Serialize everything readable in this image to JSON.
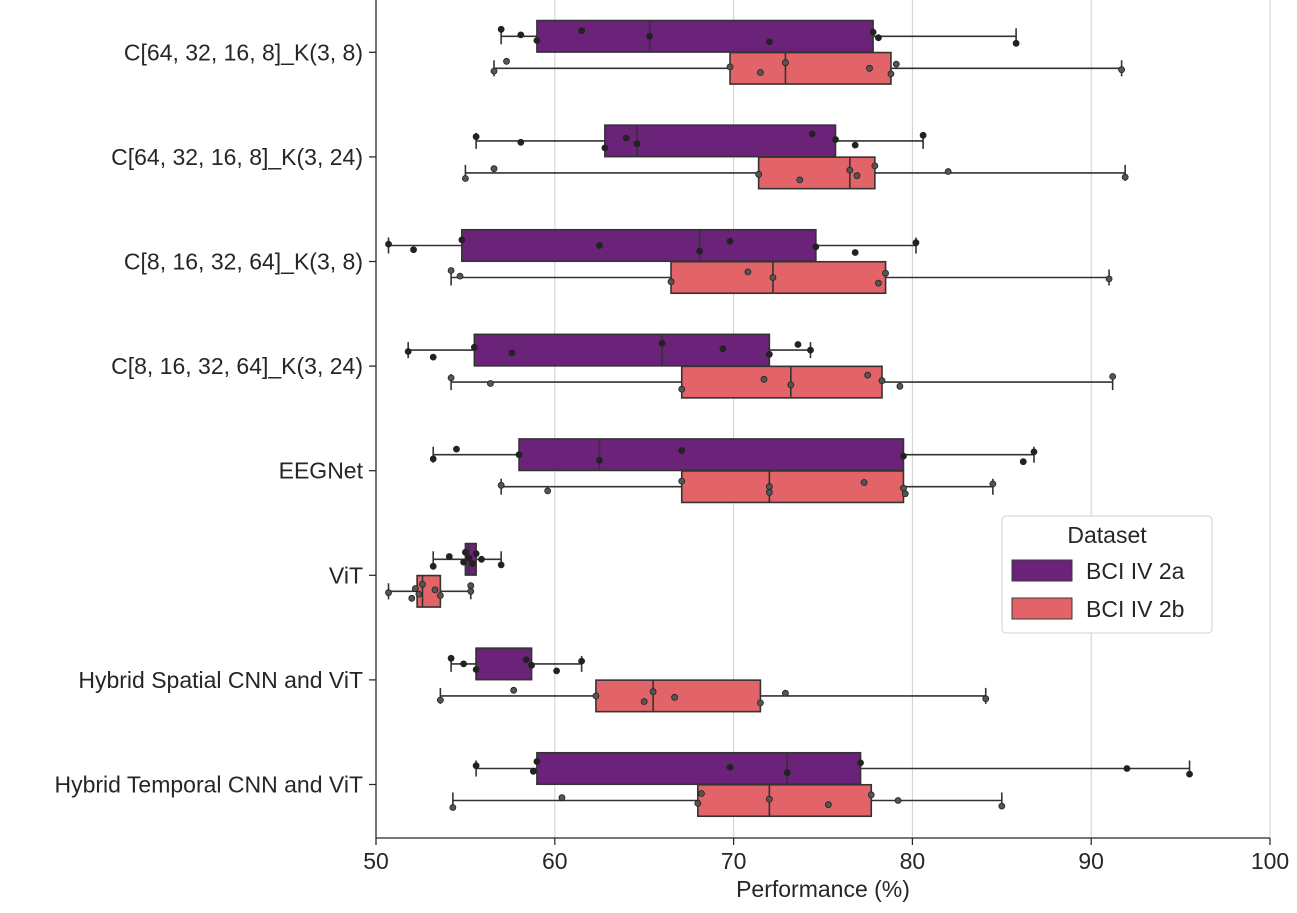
{
  "chart_data": {
    "type": "box",
    "orientation": "horizontal",
    "xlabel": "Performance (%)",
    "ylabel": "",
    "xlim": [
      50,
      100
    ],
    "xticks": [
      50,
      60,
      70,
      80,
      90,
      100
    ],
    "grid": "vertical",
    "legend": {
      "title": "Dataset",
      "placement": "center-right"
    },
    "categories": [
      "C[64, 32, 16, 8]_K(3, 8)",
      "C[64, 32, 16, 8]_K(3, 24)",
      "C[8, 16, 32, 64]_K(3, 8)",
      "C[8, 16, 32, 64]_K(3, 24)",
      "EEGNet",
      "ViT",
      "Hybrid Spatial CNN and ViT",
      "Hybrid Temporal CNN and ViT"
    ],
    "series": [
      {
        "name": "BCI IV 2a",
        "color": "#6a2378",
        "boxes": [
          {
            "whislo": 57.0,
            "q1": 59.0,
            "med": 65.3,
            "q3": 77.8,
            "whishi": 85.8,
            "points": [
              57.0,
              58.1,
              59.0,
              61.5,
              65.3,
              72.0,
              77.8,
              78.1,
              85.8
            ]
          },
          {
            "whislo": 55.6,
            "q1": 62.8,
            "med": 64.6,
            "q3": 75.7,
            "whishi": 80.6,
            "points": [
              55.6,
              58.1,
              62.8,
              64.0,
              64.6,
              74.4,
              75.7,
              76.8,
              80.6
            ]
          },
          {
            "whislo": 50.7,
            "q1": 54.8,
            "med": 68.1,
            "q3": 74.6,
            "whishi": 80.2,
            "points": [
              50.7,
              52.1,
              54.8,
              62.5,
              68.1,
              69.8,
              74.6,
              76.8,
              80.2
            ]
          },
          {
            "whislo": 51.8,
            "q1": 55.5,
            "med": 66.0,
            "q3": 72.0,
            "whishi": 74.3,
            "points": [
              51.8,
              53.2,
              55.5,
              57.6,
              66.0,
              69.4,
              72.0,
              73.6,
              74.3
            ]
          },
          {
            "whislo": 53.2,
            "q1": 58.0,
            "med": 62.5,
            "q3": 79.5,
            "whishi": 86.8,
            "points": [
              53.2,
              54.5,
              58.0,
              62.5,
              67.1,
              79.5,
              86.2,
              86.8
            ]
          },
          {
            "whislo": 53.2,
            "q1": 55.0,
            "med": 55.2,
            "q3": 55.6,
            "whishi": 57.0,
            "points": [
              53.2,
              54.1,
              54.9,
              55.0,
              55.2,
              55.4,
              55.6,
              55.9,
              57.0
            ]
          },
          {
            "whislo": 54.2,
            "q1": 55.6,
            "med": 55.6,
            "q3": 58.7,
            "whishi": 61.5,
            "points": [
              54.2,
              54.9,
              55.6,
              58.4,
              58.7,
              60.1,
              61.5
            ]
          },
          {
            "whislo": 55.6,
            "q1": 59.0,
            "med": 73.0,
            "q3": 77.1,
            "whishi": 95.5,
            "points": [
              55.6,
              58.8,
              59.0,
              69.8,
              73.0,
              77.1,
              92.0,
              95.5
            ]
          }
        ]
      },
      {
        "name": "BCI IV 2b",
        "color": "#e26368",
        "boxes": [
          {
            "whislo": 56.6,
            "q1": 69.8,
            "med": 72.9,
            "q3": 78.8,
            "whishi": 91.7,
            "points": [
              56.6,
              57.3,
              69.8,
              71.5,
              72.9,
              77.6,
              78.8,
              79.1,
              91.7
            ]
          },
          {
            "whislo": 55.0,
            "q1": 71.4,
            "med": 76.5,
            "q3": 77.9,
            "whishi": 91.9,
            "points": [
              55.0,
              56.6,
              71.4,
              73.7,
              76.5,
              76.9,
              77.9,
              82.0,
              91.9
            ]
          },
          {
            "whislo": 54.2,
            "q1": 66.5,
            "med": 72.2,
            "q3": 78.5,
            "whishi": 91.0,
            "points": [
              54.2,
              54.7,
              66.5,
              70.8,
              72.2,
              78.1,
              78.5,
              91.0
            ]
          },
          {
            "whislo": 54.2,
            "q1": 67.1,
            "med": 73.2,
            "q3": 78.3,
            "whishi": 91.2,
            "points": [
              54.2,
              56.4,
              67.1,
              71.7,
              73.2,
              77.5,
              78.3,
              79.3,
              91.2
            ]
          },
          {
            "whislo": 57.0,
            "q1": 67.1,
            "med": 72.0,
            "q3": 79.5,
            "whishi": 84.5,
            "points": [
              57.0,
              59.6,
              67.1,
              72.0,
              72.0,
              77.3,
              79.5,
              79.6,
              84.5
            ]
          },
          {
            "whislo": 50.7,
            "q1": 52.3,
            "med": 52.6,
            "q3": 53.6,
            "whishi": 55.3,
            "points": [
              50.7,
              52.0,
              52.2,
              52.4,
              52.6,
              53.3,
              53.6,
              55.3,
              55.3
            ]
          },
          {
            "whislo": 53.6,
            "q1": 62.3,
            "med": 65.5,
            "q3": 71.5,
            "whishi": 84.1,
            "points": [
              53.6,
              57.7,
              62.3,
              65.0,
              65.5,
              66.7,
              71.5,
              72.9,
              84.1
            ]
          },
          {
            "whislo": 54.3,
            "q1": 68.0,
            "med": 72.0,
            "q3": 77.7,
            "whishi": 85.0,
            "points": [
              54.3,
              60.4,
              68.0,
              68.2,
              72.0,
              75.3,
              77.7,
              79.2,
              85.0
            ]
          }
        ]
      }
    ]
  }
}
